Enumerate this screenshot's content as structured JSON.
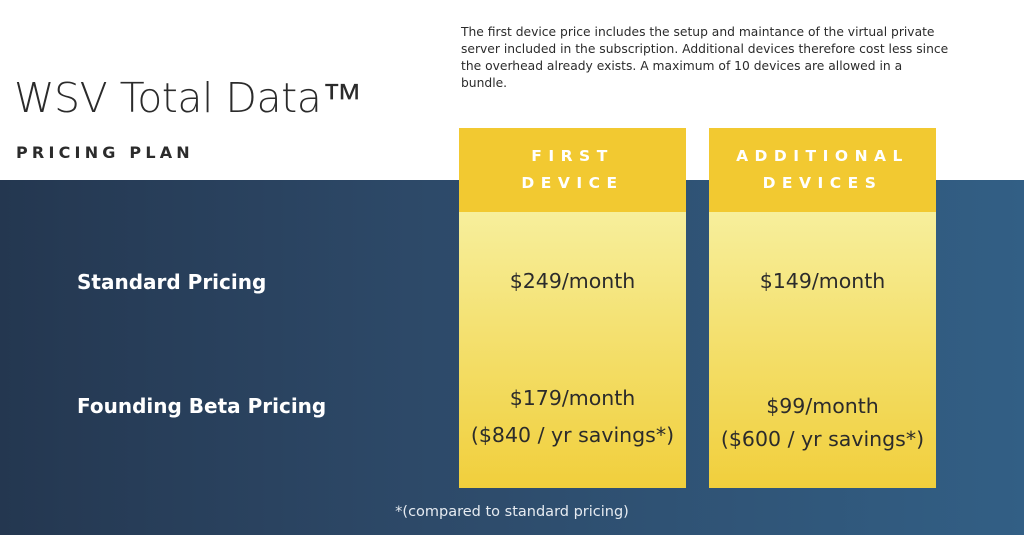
{
  "header": {
    "title": "WSV Total Data™",
    "subtitle": "PRICING PLAN",
    "note": "The first device price includes the setup and maintance of the virtual private server included in the subscription. Additional devices therefore cost less since the overhead already exists. A maximum of 10 devices are allowed in a bundle."
  },
  "columns": [
    {
      "label": "FIRST\nDEVICE"
    },
    {
      "label": "ADDITIONAL\nDEVICES"
    }
  ],
  "rows": [
    {
      "label": "Standard Pricing",
      "prices": [
        {
          "main": "$249/month",
          "savings": ""
        },
        {
          "main": "$149/month",
          "savings": ""
        }
      ]
    },
    {
      "label": "Founding Beta Pricing",
      "prices": [
        {
          "main": "$179/month",
          "savings": "($840 / yr savings*)"
        },
        {
          "main": "$99/month",
          "savings": "($600 / yr savings*)"
        }
      ]
    }
  ],
  "footnote": "*(compared to standard pricing)",
  "colors": {
    "accent": "#f2c931",
    "band": "#2d4968"
  }
}
